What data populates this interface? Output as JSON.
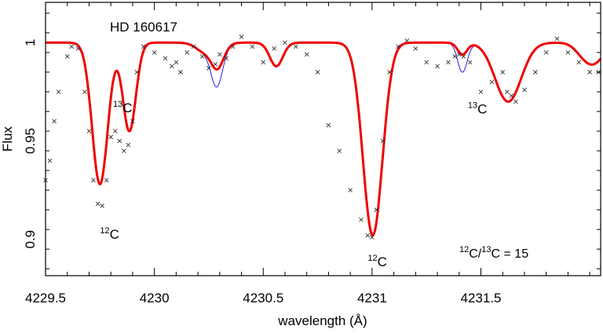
{
  "chart_data": {
    "type": "line",
    "title": "HD 160617",
    "xlabel": "wavelength (Å)",
    "ylabel": "Flux",
    "xlim": [
      4229.5,
      4232.05
    ],
    "ylim": [
      0.8815,
      1.0205
    ],
    "xticks": [
      4229.5,
      4230,
      4230.5,
      4231,
      4231.5
    ],
    "xtick_labels": [
      "4229.5",
      "4230",
      "4230.5",
      "4231",
      "4231.5"
    ],
    "yticks": [
      0.9,
      0.95,
      1
    ],
    "ytick_labels": [
      "0.9",
      "0.95",
      "1"
    ],
    "grid": false,
    "legend": "none",
    "colors": {
      "model_best": "#ee0000",
      "model_alt": "#2222dd",
      "observed": "#333333"
    },
    "features": [
      {
        "kind": "line",
        "center": 4229.75,
        "depth": 0.072,
        "width": 0.036
      },
      {
        "kind": "line",
        "center": 4229.885,
        "depth": 0.045,
        "width": 0.03
      },
      {
        "kind": "line",
        "center": 4230.235,
        "depth": 0.005,
        "width": 0.04
      },
      {
        "kind": "line",
        "center": 4230.3,
        "depth": 0.006,
        "width": 0.03
      },
      {
        "kind": "line",
        "center": 4230.56,
        "depth": 0.012,
        "width": 0.03
      },
      {
        "kind": "line",
        "center": 4231.003,
        "depth": 0.098,
        "width": 0.045
      },
      {
        "kind": "line",
        "center": 4231.625,
        "depth": 0.03,
        "width": 0.06
      },
      {
        "kind": "line",
        "center": 4231.975,
        "depth": 0.006,
        "width": 0.04
      },
      {
        "kind": "line",
        "center": 4232.03,
        "depth": 0.008,
        "width": 0.04
      },
      {
        "kind": "13C",
        "center": 4230.285,
        "depth": 0.006,
        "width": 0.025
      },
      {
        "kind": "13C",
        "center": 4231.415,
        "depth": 0.006,
        "width": 0.022
      }
    ],
    "series": [
      {
        "line_width": 3,
        "color": "#ee0000",
        "scale13": 1
      },
      {
        "line_width": 1,
        "color": "#2222dd",
        "scale13": 2.5
      }
    ],
    "observed": {
      "x": [
        4229.5,
        4229.52,
        4229.54,
        4229.56,
        4229.6,
        4229.62,
        4229.65,
        4229.68,
        4229.7,
        4229.72,
        4229.74,
        4229.76,
        4229.78,
        4229.8,
        4229.82,
        4229.84,
        4229.86,
        4229.88,
        4229.9,
        4229.92,
        4229.95,
        4230.0,
        4230.05,
        4230.08,
        4230.1,
        4230.12,
        4230.15,
        4230.18,
        4230.22,
        4230.25,
        4230.28,
        4230.3,
        4230.33,
        4230.36,
        4230.4,
        4230.45,
        4230.5,
        4230.55,
        4230.6,
        4230.65,
        4230.7,
        4230.75,
        4230.8,
        4230.85,
        4230.9,
        4230.95,
        4230.98,
        4231.0,
        4231.02,
        4231.05,
        4231.08,
        4231.12,
        4231.16,
        4231.2,
        4231.25,
        4231.3,
        4231.35,
        4231.38,
        4231.4,
        4231.42,
        4231.45,
        4231.5,
        4231.55,
        4231.6,
        4231.62,
        4231.64,
        4231.66,
        4231.7,
        4231.75,
        4231.8,
        4231.85,
        4231.9,
        4231.95,
        4232.0,
        4232.04
      ],
      "y": [
        0.93,
        0.94,
        0.96,
        0.975,
        0.993,
        0.998,
        0.997,
        0.975,
        0.955,
        0.93,
        0.918,
        0.917,
        0.93,
        0.952,
        0.955,
        0.95,
        0.945,
        0.948,
        0.96,
        0.985,
        0.998,
        0.995,
        0.992,
        0.988,
        0.99,
        0.985,
        0.995,
        0.998,
        0.993,
        0.987,
        0.989,
        0.994,
        0.992,
        0.998,
        1.003,
        0.998,
        0.99,
        0.997,
        1.0,
        0.998,
        0.994,
        0.985,
        0.958,
        0.945,
        0.925,
        0.91,
        0.902,
        0.901,
        0.915,
        0.95,
        0.985,
        0.998,
        1.001,
        0.997,
        0.99,
        0.988,
        0.99,
        0.993,
        0.994,
        0.993,
        0.99,
        0.975,
        0.98,
        0.985,
        0.975,
        0.973,
        0.97,
        0.976,
        0.985,
        0.995,
        1.002,
        0.995,
        0.99,
        0.985,
        0.985
      ]
    },
    "annotations": [
      {
        "id": "c13_left",
        "sup": "13",
        "base": "C",
        "x": 4229.81,
        "y": 0.9645
      },
      {
        "id": "c13_right",
        "sup": "13",
        "base": "C",
        "x": 4231.44,
        "y": 0.964
      },
      {
        "id": "c12_left",
        "sup": "12",
        "base": "C",
        "x": 4229.75,
        "y": 0.9003
      },
      {
        "id": "c12_right",
        "sup": "12",
        "base": "C",
        "x": 4230.98,
        "y": 0.8863
      }
    ],
    "ratio_label": {
      "sup1": "12",
      "mid": "C/",
      "sup2": "13",
      "end": "C  =  15"
    }
  }
}
